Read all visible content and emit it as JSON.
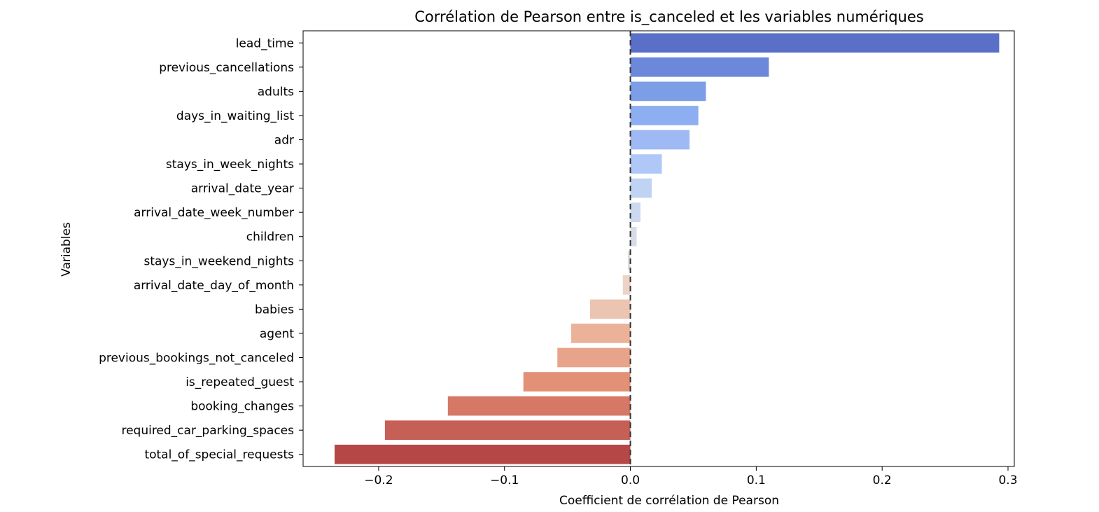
{
  "chart_data": {
    "type": "bar",
    "orientation": "horizontal",
    "title": "Corrélation de Pearson entre is_canceled et les variables numériques",
    "xlabel": "Coefficient de corrélation de Pearson",
    "ylabel": "Variables",
    "xlim": [
      -0.26,
      0.305
    ],
    "xticks": [
      -0.2,
      -0.1,
      0.0,
      0.1,
      0.2,
      0.3
    ],
    "xtick_labels": [
      "−0.2",
      "−0.1",
      "0.0",
      "0.1",
      "0.2",
      "0.3"
    ],
    "grid": false,
    "legend": "none",
    "reference_line": {
      "x": 0.0,
      "style": "dashed",
      "color": "#333333"
    },
    "categories": [
      "lead_time",
      "previous_cancellations",
      "adults",
      "days_in_waiting_list",
      "adr",
      "stays_in_week_nights",
      "arrival_date_year",
      "arrival_date_week_number",
      "children",
      "stays_in_weekend_nights",
      "arrival_date_day_of_month",
      "babies",
      "agent",
      "previous_bookings_not_canceled",
      "is_repeated_guest",
      "booking_changes",
      "required_car_parking_spaces",
      "total_of_special_requests"
    ],
    "values": [
      0.293,
      0.11,
      0.06,
      0.054,
      0.047,
      0.025,
      0.017,
      0.008,
      0.005,
      -0.002,
      -0.006,
      -0.032,
      -0.047,
      -0.058,
      -0.085,
      -0.145,
      -0.195,
      -0.235
    ],
    "colors": [
      "#5a70c8",
      "#6b88da",
      "#7c9ee6",
      "#8daef0",
      "#9eb9f3",
      "#afc8f7",
      "#c1d3f3",
      "#ccd9ee",
      "#d7dde8",
      "#e2dcd8",
      "#ecd3c6",
      "#ecc4b2",
      "#ecb299",
      "#e8a48a",
      "#e29076",
      "#d57866",
      "#c65f55",
      "#b64747"
    ]
  }
}
